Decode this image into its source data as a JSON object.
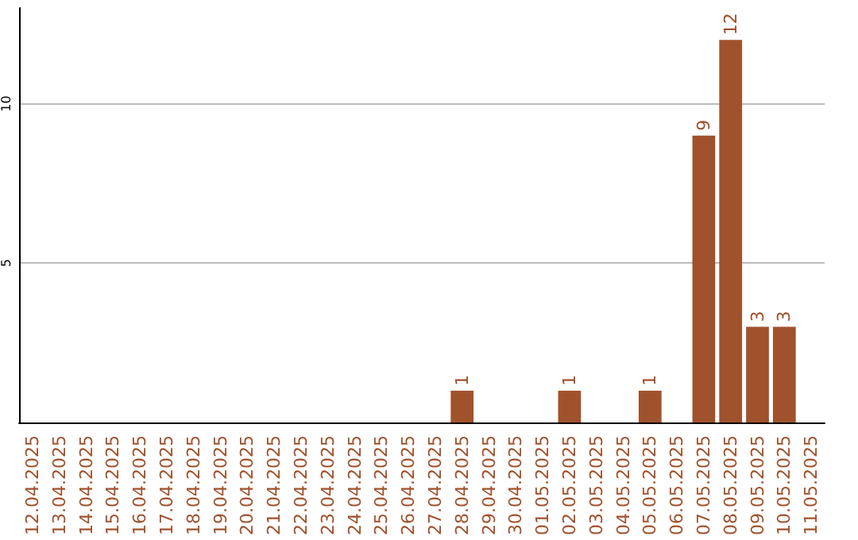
{
  "chart_data": {
    "type": "bar",
    "categories": [
      "12.04.2025",
      "13.04.2025",
      "14.04.2025",
      "15.04.2025",
      "16.04.2025",
      "17.04.2025",
      "18.04.2025",
      "19.04.2025",
      "20.04.2025",
      "21.04.2025",
      "22.04.2025",
      "23.04.2025",
      "24.04.2025",
      "25.04.2025",
      "26.04.2025",
      "27.04.2025",
      "28.04.2025",
      "29.04.2025",
      "30.04.2025",
      "01.05.2025",
      "02.05.2025",
      "03.05.2025",
      "04.05.2025",
      "05.05.2025",
      "06.05.2025",
      "07.05.2025",
      "08.05.2025",
      "09.05.2025",
      "10.05.2025",
      "11.05.2025"
    ],
    "values": [
      0,
      0,
      0,
      0,
      0,
      0,
      0,
      0,
      0,
      0,
      0,
      0,
      0,
      0,
      0,
      0,
      1,
      0,
      0,
      0,
      1,
      0,
      0,
      1,
      0,
      9,
      12,
      3,
      3,
      0
    ],
    "value_labels": [
      null,
      null,
      null,
      null,
      null,
      null,
      null,
      null,
      null,
      null,
      null,
      null,
      null,
      null,
      null,
      null,
      "1",
      null,
      null,
      null,
      "1",
      null,
      null,
      "1",
      null,
      "9",
      "12",
      "3",
      "3",
      null
    ],
    "color": "#a0522d",
    "ylim": [
      0,
      13
    ],
    "yticks": [
      5,
      10
    ],
    "grid": "y"
  }
}
